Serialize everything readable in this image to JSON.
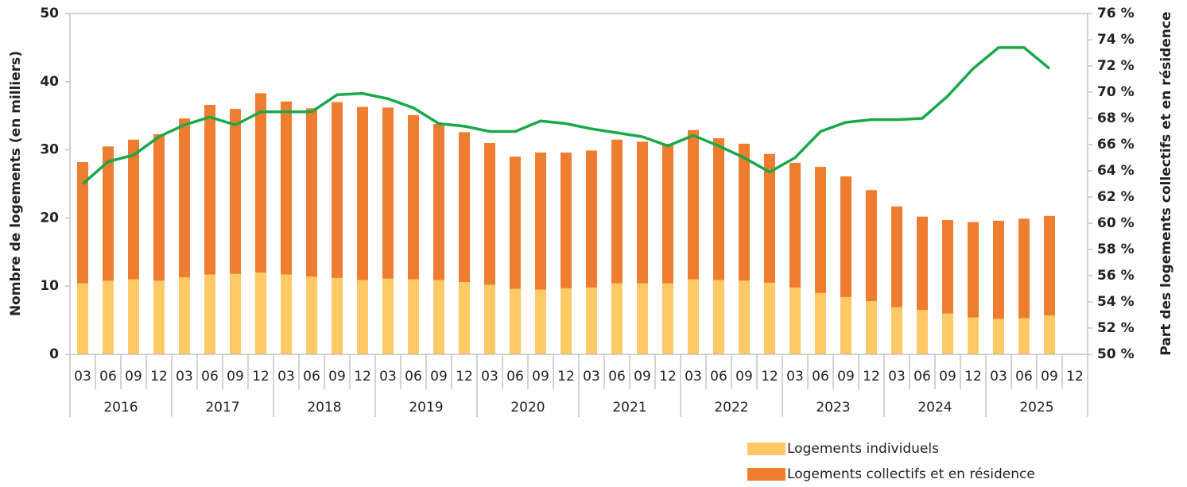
{
  "chart_data": {
    "type": "stacked_bar_line",
    "y_label": "Nombre de logements (en milliers)",
    "y2_label": "Part des logements collectifs et en résidence",
    "categories": [
      "03",
      "06",
      "09",
      "12",
      "03",
      "06",
      "09",
      "12",
      "03",
      "06",
      "09",
      "12",
      "03",
      "06",
      "09",
      "12",
      "03",
      "06",
      "09",
      "12",
      "03",
      "06",
      "09",
      "12",
      "03",
      "06",
      "09",
      "12",
      "03",
      "06",
      "09",
      "12",
      "03",
      "06",
      "09",
      "12",
      "03",
      "06",
      "09",
      "12"
    ],
    "years": [
      "2016",
      "2017",
      "2018",
      "2019",
      "2020",
      "2021",
      "2022",
      "2023",
      "2024",
      "2025"
    ],
    "series": [
      {
        "name": "Logements individuels",
        "color": "#ffc965",
        "kind": "bar",
        "values": [
          10.4,
          10.8,
          11.0,
          10.8,
          11.3,
          11.7,
          11.8,
          12.0,
          11.7,
          11.4,
          11.2,
          10.9,
          11.1,
          11.0,
          10.9,
          10.6,
          10.2,
          9.6,
          9.5,
          9.7,
          9.8,
          10.4,
          10.4,
          10.4,
          11.0,
          10.9,
          10.8,
          10.5,
          9.8,
          9.0,
          8.4,
          7.8,
          6.9,
          6.5,
          6.0,
          5.4,
          5.2,
          5.3,
          5.7,
          null
        ]
      },
      {
        "name": "Logements collectifs et en résidence",
        "color": "#ee7d32",
        "kind": "bar",
        "values": [
          17.8,
          19.7,
          20.5,
          21.5,
          23.3,
          24.9,
          24.2,
          26.3,
          25.4,
          24.7,
          25.8,
          25.4,
          25.1,
          24.1,
          22.9,
          22.0,
          20.8,
          19.4,
          20.1,
          19.9,
          20.1,
          21.1,
          20.8,
          20.5,
          21.9,
          20.8,
          20.1,
          18.9,
          18.3,
          18.5,
          17.7,
          16.3,
          14.8,
          13.7,
          13.7,
          14.0,
          14.4,
          14.6,
          14.6,
          null
        ]
      },
      {
        "color": "#1aa84a",
        "kind": "line",
        "axis": "y2",
        "values": [
          63.0,
          64.7,
          65.2,
          66.6,
          67.5,
          68.1,
          67.5,
          68.5,
          68.5,
          68.5,
          69.8,
          69.9,
          69.5,
          68.8,
          67.6,
          67.4,
          67.0,
          67.0,
          67.8,
          67.6,
          67.2,
          66.9,
          66.6,
          65.9,
          66.7,
          65.9,
          65.0,
          63.9,
          65.0,
          67.0,
          67.7,
          67.9,
          67.9,
          68.0,
          69.7,
          71.8,
          73.4,
          73.4,
          71.8,
          null
        ]
      }
    ],
    "ylim": [
      0,
      50
    ],
    "yticks": [
      0,
      10,
      20,
      30,
      40,
      50
    ],
    "y_color": "#f07d22",
    "y2lim": [
      50,
      76
    ],
    "y2ticks": [
      {
        "value": 50,
        "label": "50 %"
      },
      {
        "value": 52,
        "label": "52 %"
      },
      {
        "value": 54,
        "label": "54 %"
      },
      {
        "value": 56,
        "label": "56 %"
      },
      {
        "value": 58,
        "label": "58 %"
      },
      {
        "value": 60,
        "label": "60 %"
      },
      {
        "value": 62,
        "label": "62 %"
      },
      {
        "value": 64,
        "label": "64 %"
      },
      {
        "value": 66,
        "label": "66 %"
      },
      {
        "value": 68,
        "label": "68 %"
      },
      {
        "value": 70,
        "label": "70 %"
      },
      {
        "value": 72,
        "label": "72 %"
      },
      {
        "value": 74,
        "label": "74 %"
      },
      {
        "value": 76,
        "label": "76 %"
      }
    ],
    "y2_color": "#1aa84a"
  }
}
